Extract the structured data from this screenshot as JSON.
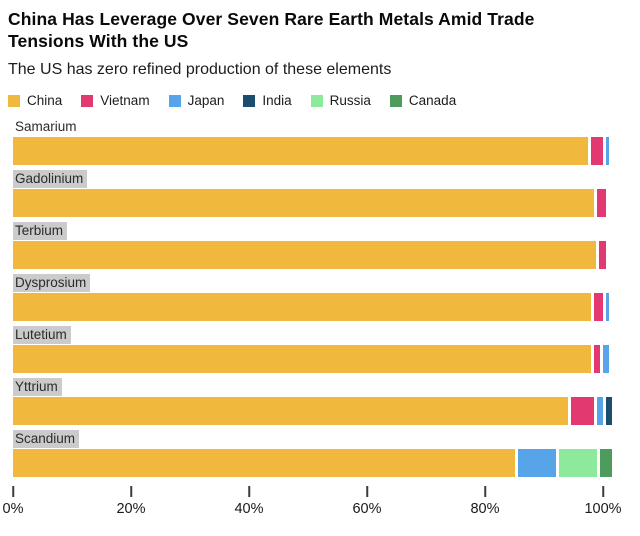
{
  "header": {
    "title_lines": [
      "China Has Leverage Over Seven Rare Earth Metals Amid Trade",
      "Tensions With the US"
    ],
    "subtitle": "The US has zero refined production of these elements"
  },
  "chart_data": {
    "type": "bar",
    "orientation": "horizontal",
    "stacked": true,
    "unit": "percent",
    "title": "China Has Leverage Over Seven Rare Earth Metals Amid Trade Tensions With the US",
    "subtitle": "The US has zero refined production of these elements",
    "legend_position": "top",
    "grid": false,
    "xlabel": "",
    "ylabel": "",
    "xlim": [
      0,
      100
    ],
    "x_ticks": [
      "0%",
      "20%",
      "40%",
      "60%",
      "80%",
      "100%"
    ],
    "x_tick_values": [
      0,
      20,
      40,
      60,
      80,
      100
    ],
    "series_names": [
      "China",
      "Vietnam",
      "Japan",
      "India",
      "Russia",
      "Canada"
    ],
    "series_colors": {
      "China": "#F0B83C",
      "Vietnam": "#E23A70",
      "Japan": "#57A4E8",
      "India": "#1C4D6E",
      "Russia": "#8DE99B",
      "Canada": "#4E9B5E"
    },
    "categories": [
      "Samarium",
      "Gadolinium",
      "Terbium",
      "Dysprosium",
      "Lutetium",
      "Yttrium",
      "Scandium"
    ],
    "rows": [
      {
        "category": "Samarium",
        "label_highlighted": false,
        "segments": [
          {
            "name": "China",
            "value": 97.5
          },
          {
            "name": "Vietnam",
            "value": 2
          },
          {
            "name": "Japan",
            "value": 0.5
          }
        ]
      },
      {
        "category": "Gadolinium",
        "label_highlighted": true,
        "segments": [
          {
            "name": "China",
            "value": 98.5
          },
          {
            "name": "Vietnam",
            "value": 1.5
          }
        ]
      },
      {
        "category": "Terbium",
        "label_highlighted": true,
        "segments": [
          {
            "name": "China",
            "value": 98.8
          },
          {
            "name": "Vietnam",
            "value": 1.2
          }
        ]
      },
      {
        "category": "Dysprosium",
        "label_highlighted": true,
        "segments": [
          {
            "name": "China",
            "value": 98
          },
          {
            "name": "Vietnam",
            "value": 1.5
          },
          {
            "name": "Japan",
            "value": 0.5
          }
        ]
      },
      {
        "category": "Lutetium",
        "label_highlighted": true,
        "segments": [
          {
            "name": "China",
            "value": 98
          },
          {
            "name": "Vietnam",
            "value": 1
          },
          {
            "name": "Japan",
            "value": 1
          }
        ]
      },
      {
        "category": "Yttrium",
        "label_highlighted": true,
        "segments": [
          {
            "name": "China",
            "value": 94
          },
          {
            "name": "Vietnam",
            "value": 4
          },
          {
            "name": "Japan",
            "value": 1
          },
          {
            "name": "India",
            "value": 1
          }
        ]
      },
      {
        "category": "Scandium",
        "label_highlighted": true,
        "segments": [
          {
            "name": "China",
            "value": 85
          },
          {
            "name": "Japan",
            "value": 6.5
          },
          {
            "name": "Russia",
            "value": 6.5
          },
          {
            "name": "Canada",
            "value": 2
          }
        ]
      }
    ]
  },
  "style": {
    "label_highlight_bg": "#CBCBCB",
    "tick_color": "#3C3C3C",
    "background": "#FFFFFF"
  }
}
